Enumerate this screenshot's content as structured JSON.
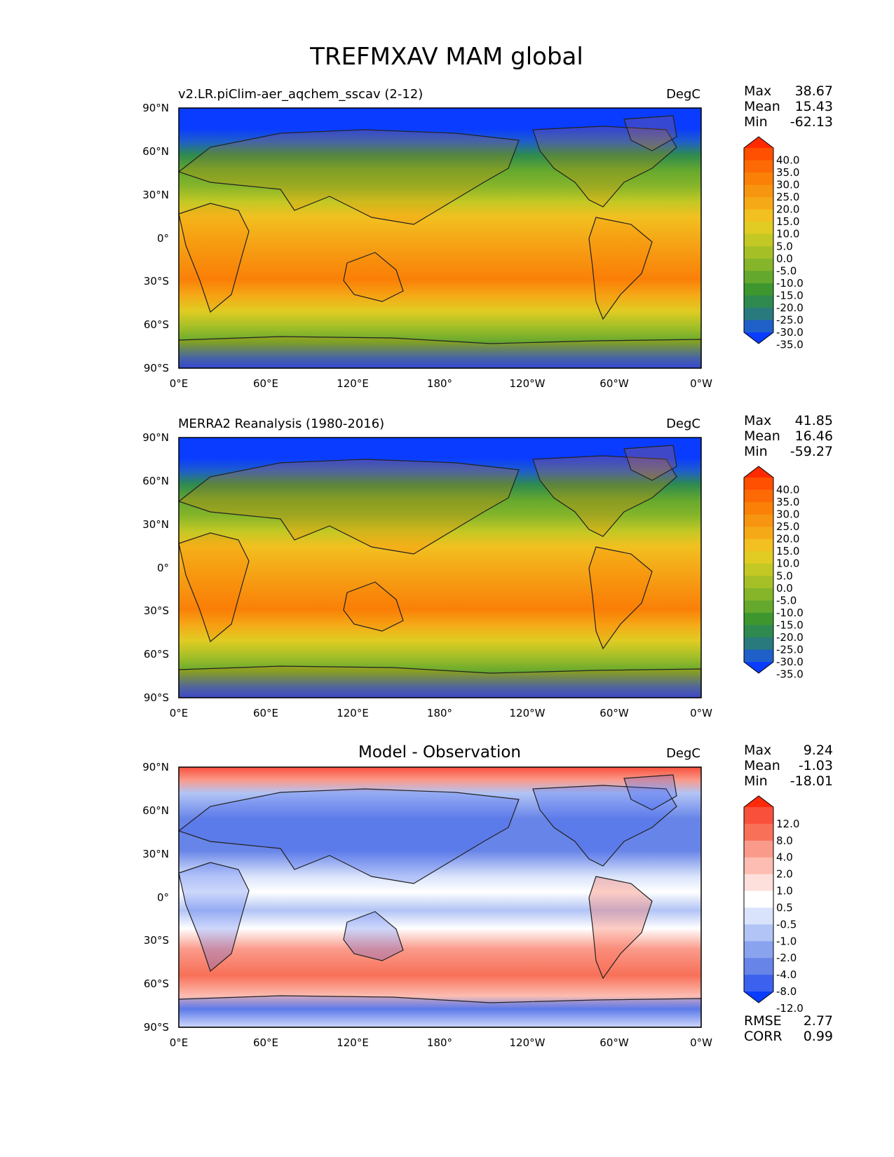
{
  "title": "TREFMXAV MAM global",
  "x_ticks": [
    "0°E",
    "60°E",
    "120°E",
    "180°",
    "120°W",
    "60°W",
    "0°W"
  ],
  "y_ticks": [
    "90°N",
    "60°N",
    "30°N",
    "0°",
    "30°S",
    "60°S",
    "90°S"
  ],
  "chart_data": [
    {
      "type": "heatmap",
      "name": "model",
      "title": "v2.LR.piClim-aer_aqchem_sscav (2-12)",
      "units": "DegC",
      "stats": [
        {
          "label": "Max",
          "value": "38.67"
        },
        {
          "label": "Mean",
          "value": "15.43"
        },
        {
          "label": "Min",
          "value": "-62.13"
        }
      ],
      "colorbar": {
        "levels": [
          "40.0",
          "35.0",
          "30.0",
          "25.0",
          "20.0",
          "15.0",
          "10.0",
          "5.0",
          "0.0",
          "-5.0",
          "-10.0",
          "-15.0",
          "-20.0",
          "-25.0",
          "-30.0",
          "-35.0"
        ],
        "colors": [
          "#ff2a00",
          "#ff4f00",
          "#fd6a05",
          "#fa8008",
          "#f79410",
          "#f5a917",
          "#f2c020",
          "#e0cc22",
          "#c3c824",
          "#a5c027",
          "#86b52a",
          "#65a82e",
          "#3d972e",
          "#2e8a4f",
          "#297a7d",
          "#1f60c8",
          "#0a3cff"
        ],
        "extend": "both"
      },
      "xlim": [
        0,
        360
      ],
      "ylim": [
        -90,
        90
      ]
    },
    {
      "type": "heatmap",
      "name": "observation",
      "title": "MERRA2 Reanalysis (1980-2016)",
      "units": "DegC",
      "stats": [
        {
          "label": "Max",
          "value": "41.85"
        },
        {
          "label": "Mean",
          "value": "16.46"
        },
        {
          "label": "Min",
          "value": "-59.27"
        }
      ],
      "colorbar": {
        "levels": [
          "40.0",
          "35.0",
          "30.0",
          "25.0",
          "20.0",
          "15.0",
          "10.0",
          "5.0",
          "0.0",
          "-5.0",
          "-10.0",
          "-15.0",
          "-20.0",
          "-25.0",
          "-30.0",
          "-35.0"
        ],
        "colors": [
          "#ff2a00",
          "#ff4f00",
          "#fd6a05",
          "#fa8008",
          "#f79410",
          "#f5a917",
          "#f2c020",
          "#e0cc22",
          "#c3c824",
          "#a5c027",
          "#86b52a",
          "#65a82e",
          "#3d972e",
          "#2e8a4f",
          "#297a7d",
          "#1f60c8",
          "#0a3cff"
        ],
        "extend": "both"
      },
      "xlim": [
        0,
        360
      ],
      "ylim": [
        -90,
        90
      ]
    },
    {
      "type": "heatmap",
      "name": "difference",
      "title": "Model - Observation",
      "units": "DegC",
      "stats": [
        {
          "label": "Max",
          "value": "9.24"
        },
        {
          "label": "Mean",
          "value": "-1.03"
        },
        {
          "label": "Min",
          "value": "-18.01"
        }
      ],
      "extra_stats": [
        {
          "label": "RMSE",
          "value": "2.77"
        },
        {
          "label": "CORR",
          "value": "0.99"
        }
      ],
      "colorbar": {
        "levels": [
          "12.0",
          "8.0",
          "4.0",
          "2.0",
          "1.0",
          "0.5",
          "-0.5",
          "-1.0",
          "-2.0",
          "-4.0",
          "-8.0",
          "-12.0"
        ],
        "colors": [
          "#ff2a0a",
          "#f9503c",
          "#f87058",
          "#fa9a8a",
          "#fdbdb2",
          "#fde0dc",
          "#ffffff",
          "#d9e3fb",
          "#b2c4f5",
          "#8aa3ef",
          "#6784e8",
          "#3b61ee",
          "#0a3cff"
        ],
        "extend": "both"
      },
      "xlim": [
        0,
        360
      ],
      "ylim": [
        -90,
        90
      ]
    }
  ]
}
